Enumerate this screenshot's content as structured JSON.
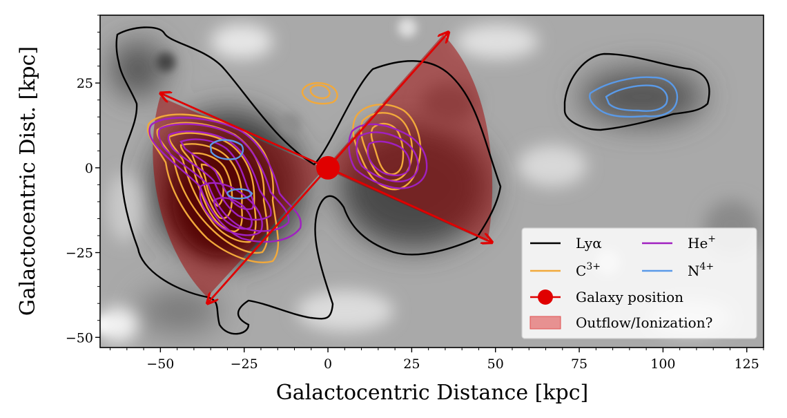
{
  "chart_data": {
    "type": "contour-map",
    "xlabel": "Galactocentric Distance [kpc]",
    "ylabel": "Galactocentric Dist. [kpc]",
    "xlim": [
      -68,
      130
    ],
    "ylim": [
      -53,
      45
    ],
    "xticks": [
      -50,
      -25,
      0,
      25,
      50,
      75,
      100,
      125
    ],
    "xtick_labels": [
      "−50",
      "−25",
      "0",
      "25",
      "50",
      "75",
      "100",
      "125"
    ],
    "yticks": [
      -50,
      -25,
      0,
      25
    ],
    "ytick_labels": [
      "−50",
      "−25",
      "0",
      "25"
    ],
    "legend_position": "lower-right",
    "galaxy_position": [
      0,
      0
    ],
    "arrows": [
      {
        "from": [
          0,
          0
        ],
        "to": [
          -50,
          22
        ]
      },
      {
        "from": [
          0,
          0
        ],
        "to": [
          36,
          40
        ]
      },
      {
        "from": [
          0,
          0
        ],
        "to": [
          49,
          -22
        ]
      },
      {
        "from": [
          0,
          0
        ],
        "to": [
          -36,
          -40
        ]
      }
    ],
    "series": [
      {
        "name": "Lyα",
        "color": "#000000",
        "kind": "contour"
      },
      {
        "name": "C³⁺",
        "color": "#f2a93b",
        "kind": "contour"
      },
      {
        "name": "He⁺",
        "color": "#a020c0",
        "kind": "contour"
      },
      {
        "name": "N⁴⁺",
        "color": "#5a9ae8",
        "kind": "contour"
      },
      {
        "name": "Galaxy position",
        "color": "#e00000",
        "kind": "marker"
      },
      {
        "name": "Outflow/Ionization?",
        "color": "#e05050",
        "kind": "patch"
      }
    ],
    "legend": [
      {
        "label": "Lyα",
        "sup": ""
      },
      {
        "label": "C",
        "sup": "3+"
      },
      {
        "label": "He",
        "sup": "+"
      },
      {
        "label": "N",
        "sup": "4+"
      },
      {
        "label": "Galaxy position",
        "sup": ""
      },
      {
        "label": "Outflow/Ionization?",
        "sup": ""
      }
    ]
  }
}
